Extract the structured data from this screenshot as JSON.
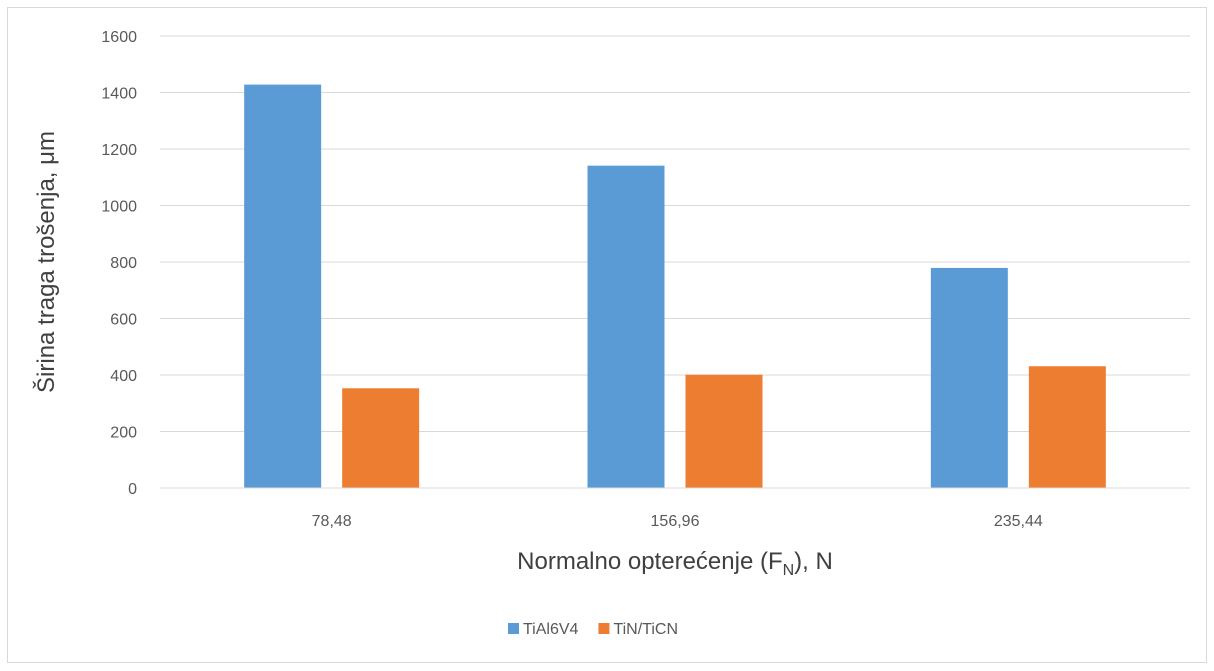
{
  "chart_data": {
    "type": "bar",
    "categories": [
      "78,48",
      "156,96",
      "235,44"
    ],
    "series": [
      {
        "name": "TiAl6V4",
        "color": "#5b9bd5",
        "values": [
          1428,
          1141,
          779
        ]
      },
      {
        "name": "TiN/TiCN",
        "color": "#ed7d31",
        "values": [
          353,
          401,
          431
        ]
      }
    ],
    "xlabel_main": "Normalno opterećenje (F",
    "xlabel_sub": "N",
    "xlabel_tail": "), N",
    "ylabel": "Širina  traga  trošenja, μm",
    "ylim": [
      0,
      1600
    ],
    "yticks": [
      0,
      200,
      400,
      600,
      800,
      1000,
      1200,
      1400,
      1600
    ],
    "grid": true,
    "legend_position": "bottom"
  }
}
